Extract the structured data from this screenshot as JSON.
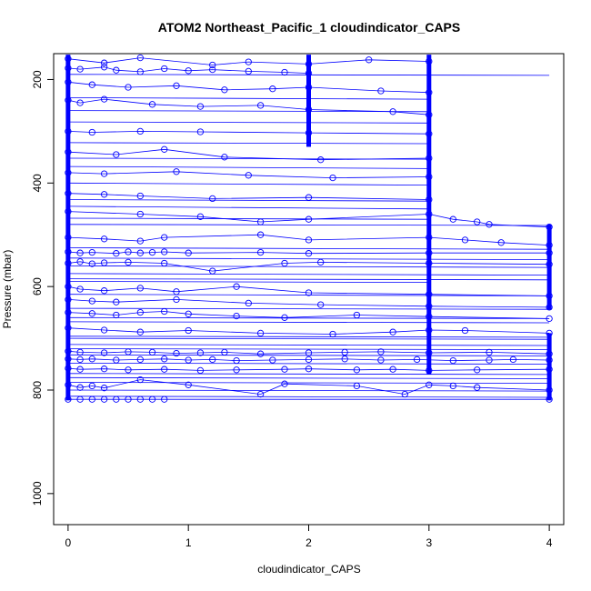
{
  "chart_data": {
    "type": "scatter",
    "title": "ATOM2 Northeast_Pacific_1 cloudindicator_CAPS",
    "xlabel": "cloudindicator_CAPS",
    "ylabel": "Pressure (mbar)",
    "xlim": [
      -0.12,
      4.12
    ],
    "ylim": [
      1060,
      150
    ],
    "y_reversed": true,
    "x_ticks": [
      0,
      1,
      2,
      3,
      4
    ],
    "y_ticks": [
      200,
      400,
      600,
      800,
      1000
    ],
    "x_tick_labels": [
      "0",
      "1",
      "2",
      "3",
      "4"
    ],
    "y_tick_labels": [
      "200",
      "400",
      "600",
      "800",
      "1000"
    ],
    "grid": false,
    "legend": "none",
    "color": "#0000ff",
    "series": [
      {
        "x": [
          0,
          0.1,
          0.3,
          0.4,
          0.6,
          0.8,
          1.0,
          1.2,
          1.5,
          1.8,
          2.0
        ],
        "y": [
          178,
          180,
          176,
          182,
          185,
          179,
          183,
          181,
          184,
          186,
          188
        ]
      },
      {
        "x": [
          0,
          0.3,
          0.6,
          1.2,
          1.5,
          2.0,
          2.5,
          3.0
        ],
        "y": [
          160,
          168,
          158,
          172,
          166,
          170,
          162,
          165
        ]
      },
      {
        "x": [
          0,
          0.2,
          0.5,
          0.9,
          1.3,
          1.7,
          2.0,
          2.6,
          3.0
        ],
        "y": [
          205,
          210,
          215,
          212,
          220,
          218,
          215,
          222,
          225
        ]
      },
      {
        "x": [
          0,
          0.1,
          0.3,
          0.7,
          1.1,
          1.6,
          2.0,
          2.7,
          3.0
        ],
        "y": [
          240,
          245,
          238,
          248,
          252,
          250,
          258,
          262,
          268
        ]
      },
      {
        "x": [
          0,
          0.2,
          0.6,
          1.1,
          2.0,
          3.0
        ],
        "y": [
          300,
          302,
          300,
          301,
          303,
          305
        ]
      },
      {
        "x": [
          0,
          0.4,
          0.8,
          1.3,
          2.1,
          3.0
        ],
        "y": [
          340,
          345,
          335,
          350,
          355,
          352
        ]
      },
      {
        "x": [
          0,
          0.3,
          0.9,
          1.5,
          2.2,
          3.0
        ],
        "y": [
          380,
          382,
          378,
          385,
          390,
          388
        ]
      },
      {
        "x": [
          0,
          0.3,
          0.6,
          1.2,
          2.0,
          3.0
        ],
        "y": [
          420,
          422,
          425,
          430,
          428,
          432
        ]
      },
      {
        "x": [
          0,
          0.6,
          1.1,
          1.6,
          2.0,
          3.0,
          3.2,
          3.4,
          3.5,
          4.0
        ],
        "y": [
          455,
          460,
          465,
          475,
          470,
          460,
          470,
          475,
          480,
          485
        ]
      },
      {
        "x": [
          0,
          0.3,
          0.6,
          0.8,
          1.6,
          2.0,
          3.0,
          3.3,
          3.6,
          4.0
        ],
        "y": [
          505,
          508,
          512,
          505,
          500,
          510,
          505,
          510,
          515,
          520
        ]
      },
      {
        "x": [
          0,
          0.1,
          0.2,
          0.4,
          0.5,
          0.6,
          0.7,
          0.8,
          1.0,
          1.6,
          2.0,
          3.0,
          4.0
        ],
        "y": [
          533,
          535,
          534,
          536,
          533,
          535,
          534,
          533,
          535,
          534,
          536,
          535,
          535
        ]
      },
      {
        "x": [
          0,
          0.1,
          0.2,
          0.3,
          0.5,
          0.8,
          1.2,
          1.8,
          2.1,
          3.0,
          4.0
        ],
        "y": [
          555,
          552,
          556,
          554,
          553,
          555,
          570,
          555,
          553,
          555,
          557
        ]
      },
      {
        "x": [
          0,
          0.1,
          0.3,
          0.6,
          0.9,
          1.4,
          2.0,
          3.0,
          4.0
        ],
        "y": [
          600,
          605,
          608,
          603,
          610,
          600,
          612,
          615,
          618
        ]
      },
      {
        "x": [
          0,
          0.2,
          0.4,
          0.9,
          1.5,
          2.1,
          3.0,
          4.0
        ],
        "y": [
          625,
          628,
          630,
          625,
          632,
          635,
          638,
          640
        ]
      },
      {
        "x": [
          0,
          0.2,
          0.4,
          0.6,
          0.8,
          1.0,
          1.4,
          1.8,
          2.4,
          3.0,
          4.0
        ],
        "y": [
          650,
          652,
          655,
          650,
          648,
          653,
          657,
          660,
          655,
          658,
          662
        ]
      },
      {
        "x": [
          0,
          0.3,
          0.6,
          1.0,
          1.6,
          2.2,
          2.7,
          3.0,
          3.3,
          4.0
        ],
        "y": [
          680,
          684,
          688,
          685,
          690,
          692,
          688,
          684,
          685,
          690
        ]
      },
      {
        "x": [
          0,
          0.1,
          0.3,
          0.5,
          0.7,
          0.9,
          1.1,
          1.3,
          1.6,
          2.0,
          2.3,
          2.6,
          3.0,
          3.5,
          4.0
        ],
        "y": [
          725,
          727,
          728,
          726,
          727,
          729,
          728,
          727,
          730,
          728,
          727,
          726,
          728,
          727,
          730
        ]
      },
      {
        "x": [
          0,
          0.1,
          0.2,
          0.4,
          0.6,
          0.8,
          1.0,
          1.2,
          1.4,
          1.7,
          2.0,
          2.3,
          2.6,
          2.9,
          3.2,
          3.5,
          3.7,
          4.0
        ],
        "y": [
          740,
          741,
          740,
          742,
          741,
          740,
          742,
          741,
          743,
          742,
          741,
          740,
          742,
          741,
          743,
          742,
          741,
          742
        ]
      },
      {
        "x": [
          0,
          0.1,
          0.3,
          0.5,
          0.8,
          1.1,
          1.4,
          1.8,
          2.0,
          2.4,
          2.7,
          3.0,
          3.4,
          4.0
        ],
        "y": [
          758,
          760,
          759,
          761,
          760,
          762,
          761,
          760,
          759,
          761,
          760,
          762,
          761,
          760
        ]
      },
      {
        "x": [
          0,
          0.1,
          0.2,
          0.3,
          0.6,
          1.0,
          1.6,
          1.8,
          2.4,
          2.8,
          3.0,
          3.2,
          3.4,
          4.0
        ],
        "y": [
          790,
          795,
          792,
          796,
          780,
          790,
          808,
          788,
          792,
          808,
          790,
          792,
          795,
          800
        ]
      },
      {
        "x": [
          0,
          0.1,
          0.2,
          0.3,
          0.4,
          0.5,
          0.6,
          0.7,
          0.8,
          4.0
        ],
        "y": [
          818,
          818,
          818,
          818,
          818,
          818,
          818,
          818,
          818,
          818
        ]
      }
    ],
    "background_lines": [
      {
        "x": [
          0,
          4.0
        ],
        "y": [
          190,
          192
        ]
      },
      {
        "x": [
          0,
          3.0
        ],
        "y": [
          235,
          238
        ]
      },
      {
        "x": [
          0,
          3.0
        ],
        "y": [
          322,
          324
        ]
      },
      {
        "x": [
          0,
          3.0
        ],
        "y": [
          368,
          372
        ]
      },
      {
        "x": [
          0,
          3.0
        ],
        "y": [
          400,
          404
        ]
      },
      {
        "x": [
          0,
          3.0
        ],
        "y": [
          445,
          450
        ]
      },
      {
        "x": [
          0,
          4.0
        ],
        "y": [
          480,
          482
        ]
      },
      {
        "x": [
          0,
          4.0
        ],
        "y": [
          545,
          548
        ]
      },
      {
        "x": [
          0,
          4.0
        ],
        "y": [
          575,
          578
        ]
      },
      {
        "x": [
          0,
          3.0
        ],
        "y": [
          590,
          592
        ]
      },
      {
        "x": [
          0,
          4.0
        ],
        "y": [
          615,
          618
        ]
      },
      {
        "x": [
          0,
          4.0
        ],
        "y": [
          642,
          644
        ]
      },
      {
        "x": [
          0,
          4.0
        ],
        "y": [
          668,
          670
        ]
      },
      {
        "x": [
          0,
          4.0
        ],
        "y": [
          700,
          702
        ]
      },
      {
        "x": [
          0,
          4.0
        ],
        "y": [
          712,
          714
        ]
      },
      {
        "x": [
          0,
          4.0
        ],
        "y": [
          732,
          734
        ]
      },
      {
        "x": [
          0,
          4.0
        ],
        "y": [
          748,
          750
        ]
      },
      {
        "x": [
          0,
          4.0
        ],
        "y": [
          768,
          770
        ]
      },
      {
        "x": [
          0,
          4.0
        ],
        "y": [
          776,
          778
        ]
      },
      {
        "x": [
          0,
          4.0
        ],
        "y": [
          800,
          802
        ]
      },
      {
        "x": [
          0,
          4.0
        ],
        "y": [
          812,
          814
        ]
      },
      {
        "x": [
          0,
          3.0
        ],
        "y": [
          260,
          262
        ]
      },
      {
        "x": [
          0,
          3.0
        ],
        "y": [
          282,
          284
        ]
      },
      {
        "x": [
          0,
          3.0
        ],
        "y": [
          352,
          354
        ]
      },
      {
        "x": [
          0,
          3.0
        ],
        "y": [
          432,
          435
        ]
      },
      {
        "x": [
          0,
          3.0
        ],
        "y": [
          468,
          470
        ]
      },
      {
        "x": [
          0,
          4.0
        ],
        "y": [
          525,
          528
        ]
      },
      {
        "x": [
          0,
          4.0
        ],
        "y": [
          560,
          563
        ]
      },
      {
        "x": [
          0,
          4.0
        ],
        "y": [
          585,
          587
        ]
      },
      {
        "x": [
          0,
          4.0
        ],
        "y": [
          660,
          662
        ]
      },
      {
        "x": [
          0,
          4.0
        ],
        "y": [
          696,
          698
        ]
      },
      {
        "x": [
          0,
          4.0
        ],
        "y": [
          720,
          722
        ]
      },
      {
        "x": [
          0,
          4.0
        ],
        "y": [
          785,
          787
        ]
      }
    ],
    "vertical_columns": [
      {
        "x": 0,
        "y": [
          152,
          820
        ]
      },
      {
        "x": 2,
        "y": [
          152,
          330
        ]
      },
      {
        "x": 3,
        "y": [
          152,
          770
        ]
      },
      {
        "x": 4,
        "y": [
          480,
          645
        ]
      },
      {
        "x": 4,
        "y": [
          690,
          820
        ]
      }
    ]
  }
}
